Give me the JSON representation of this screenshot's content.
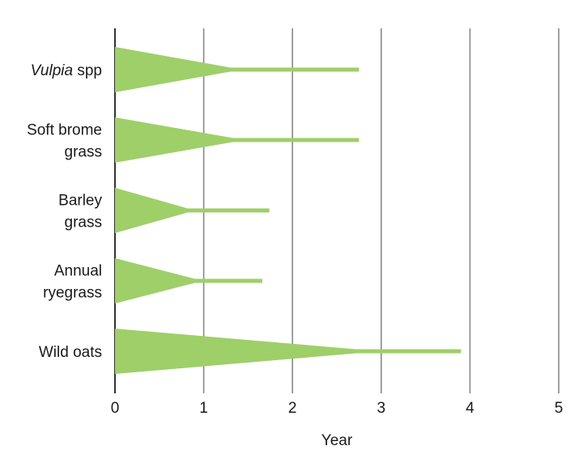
{
  "chart_data": {
    "type": "bar",
    "title": "",
    "xlabel": "Year",
    "ylabel": "",
    "xlim": [
      0,
      5
    ],
    "xticks": [
      "0",
      "1",
      "2",
      "3",
      "4",
      "5"
    ],
    "grid": "vertical",
    "color": "#9fcf69",
    "categories": [
      {
        "label_parts": [
          {
            "text": "Vulpia",
            "italic": true
          },
          {
            "text": " spp",
            "italic": false
          }
        ],
        "taper_end": 1.3,
        "line_end": 2.75
      },
      {
        "label_lines": [
          "Soft brome",
          "grass"
        ],
        "taper_end": 1.33,
        "line_end": 2.75
      },
      {
        "label_lines": [
          "Barley",
          "grass"
        ],
        "taper_end": 0.82,
        "line_end": 1.74
      },
      {
        "label_lines": [
          "Annual",
          "ryegrass"
        ],
        "taper_end": 0.9,
        "line_end": 1.66
      },
      {
        "label_lines": [
          "Wild oats"
        ],
        "taper_end": 2.72,
        "line_end": 3.9
      }
    ]
  }
}
